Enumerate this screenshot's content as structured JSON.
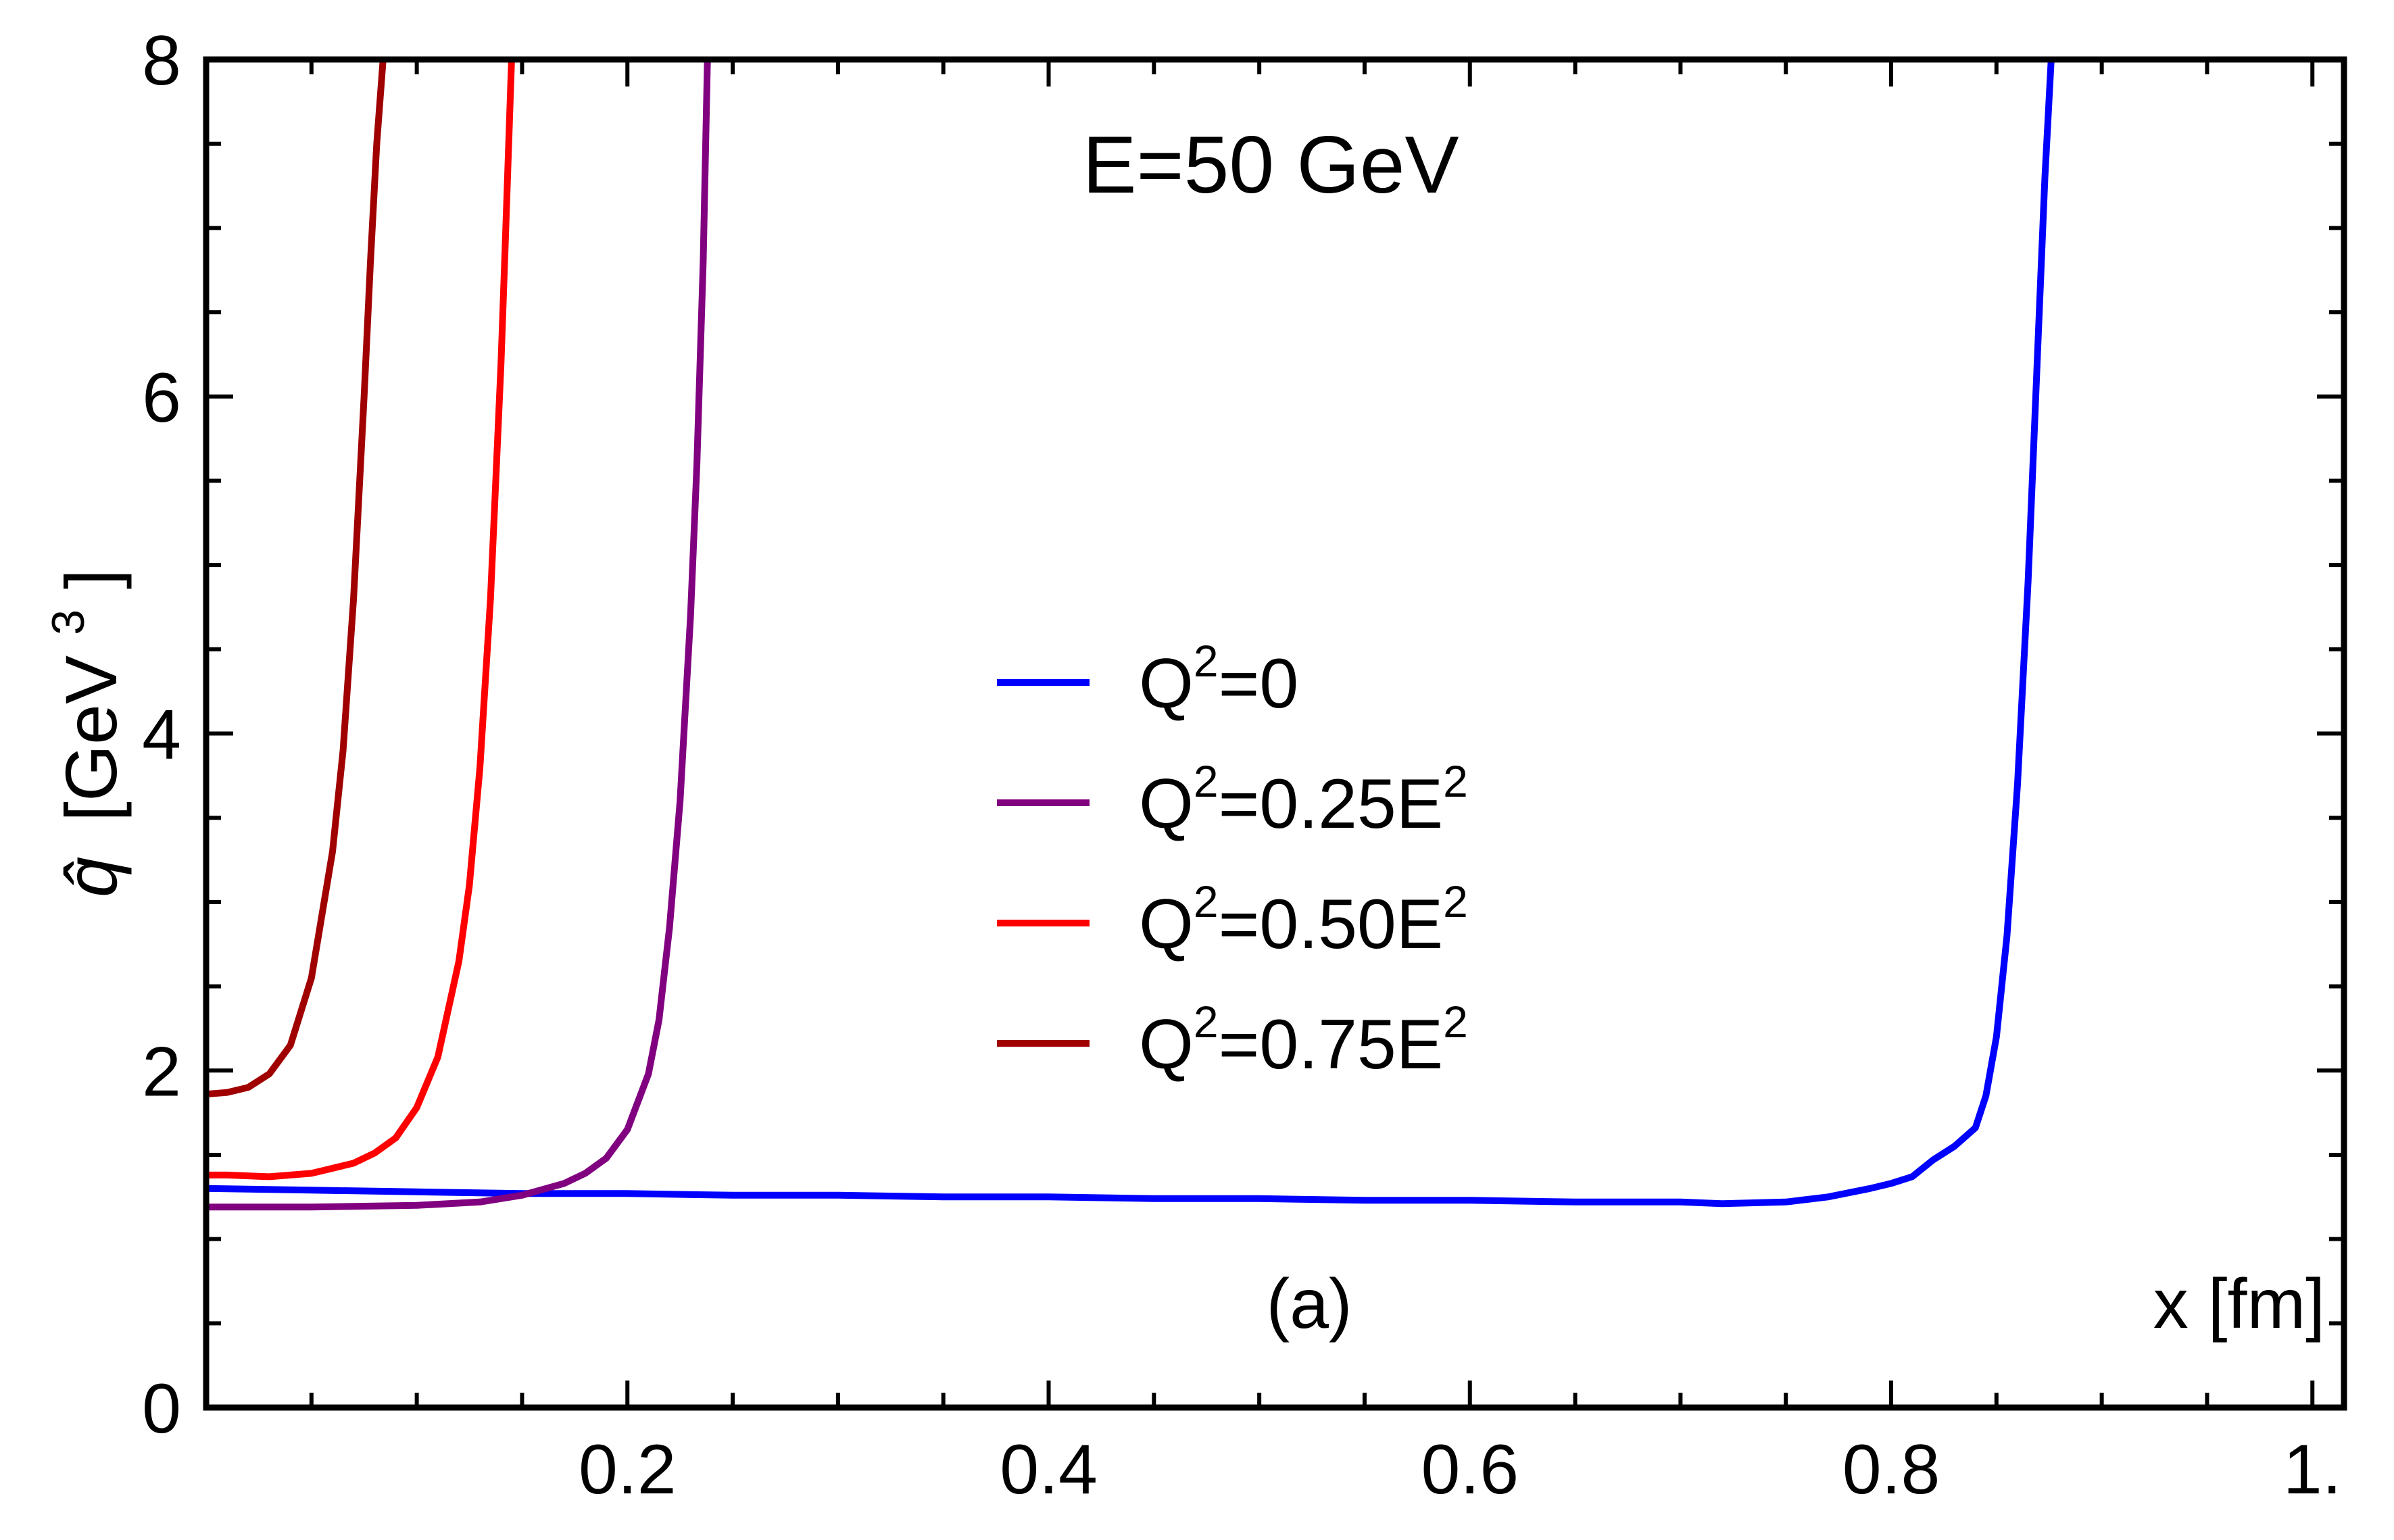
{
  "chart_data": {
    "type": "line",
    "title": "E=50 GeV",
    "panel_label": "(a)",
    "xlabel": "x [fm]",
    "ylabel_symbol": "q̂",
    "ylabel_unit_prefix": "[GeV",
    "ylabel_unit_exp": "3",
    "ylabel_unit_suffix": "]",
    "xlim": [
      0.0,
      1.015
    ],
    "ylim": [
      0,
      8
    ],
    "x_ticks": [
      {
        "value": 0.2,
        "label": "0.2"
      },
      {
        "value": 0.4,
        "label": "0.4"
      },
      {
        "value": 0.6,
        "label": "0.6"
      },
      {
        "value": 0.8,
        "label": "0.8"
      },
      {
        "value": 1.0,
        "label": "1."
      }
    ],
    "y_ticks": [
      {
        "value": 0,
        "label": "0"
      },
      {
        "value": 2,
        "label": "2"
      },
      {
        "value": 4,
        "label": "4"
      },
      {
        "value": 6,
        "label": "6"
      },
      {
        "value": 8,
        "label": "8"
      }
    ],
    "series": [
      {
        "name": "Q²=0",
        "legend_base": "Q",
        "legend_mid": "=0",
        "legend_exp2": "",
        "color": "#0000ff",
        "x": [
          0.0,
          0.05,
          0.1,
          0.15,
          0.2,
          0.25,
          0.3,
          0.35,
          0.4,
          0.45,
          0.5,
          0.55,
          0.6,
          0.65,
          0.7,
          0.72,
          0.75,
          0.77,
          0.79,
          0.8,
          0.81,
          0.82,
          0.83,
          0.84,
          0.845,
          0.85,
          0.855,
          0.86,
          0.865,
          0.87,
          0.873,
          0.876
        ],
        "y": [
          1.3,
          1.29,
          1.28,
          1.27,
          1.27,
          1.26,
          1.26,
          1.25,
          1.25,
          1.24,
          1.24,
          1.23,
          1.23,
          1.22,
          1.22,
          1.21,
          1.22,
          1.25,
          1.3,
          1.33,
          1.37,
          1.47,
          1.55,
          1.66,
          1.85,
          2.2,
          2.8,
          3.7,
          4.9,
          6.4,
          7.3,
          8.0
        ]
      },
      {
        "name": "Q²=0.25E²",
        "legend_base": "Q",
        "legend_mid": "=0.25E",
        "legend_exp2": "2",
        "color": "#800080",
        "x": [
          0.0,
          0.05,
          0.1,
          0.13,
          0.15,
          0.17,
          0.18,
          0.19,
          0.2,
          0.21,
          0.215,
          0.22,
          0.225,
          0.23,
          0.233,
          0.236,
          0.238
        ],
        "y": [
          1.19,
          1.19,
          1.2,
          1.22,
          1.26,
          1.33,
          1.39,
          1.48,
          1.65,
          1.98,
          2.3,
          2.85,
          3.6,
          4.7,
          5.6,
          6.8,
          8.0
        ]
      },
      {
        "name": "Q²=0.50E²",
        "legend_base": "Q",
        "legend_mid": "=0.50E",
        "legend_exp2": "2",
        "color": "#ff0000",
        "x": [
          0.0,
          0.01,
          0.03,
          0.05,
          0.07,
          0.08,
          0.09,
          0.1,
          0.11,
          0.12,
          0.125,
          0.13,
          0.135,
          0.14,
          0.142,
          0.145
        ],
        "y": [
          1.38,
          1.38,
          1.37,
          1.39,
          1.45,
          1.51,
          1.6,
          1.78,
          2.08,
          2.65,
          3.1,
          3.8,
          4.8,
          6.2,
          6.9,
          8.0
        ]
      },
      {
        "name": "Q²=0.75E²",
        "legend_base": "Q",
        "legend_mid": "=0.75E",
        "legend_exp2": "2",
        "color": "#a00000",
        "x": [
          0.0,
          0.01,
          0.02,
          0.03,
          0.04,
          0.05,
          0.06,
          0.065,
          0.07,
          0.075,
          0.078,
          0.081,
          0.084
        ],
        "y": [
          1.86,
          1.87,
          1.9,
          1.98,
          2.15,
          2.55,
          3.3,
          3.9,
          4.8,
          6.0,
          6.8,
          7.5,
          8.0
        ]
      }
    ],
    "legend_position": "center"
  }
}
